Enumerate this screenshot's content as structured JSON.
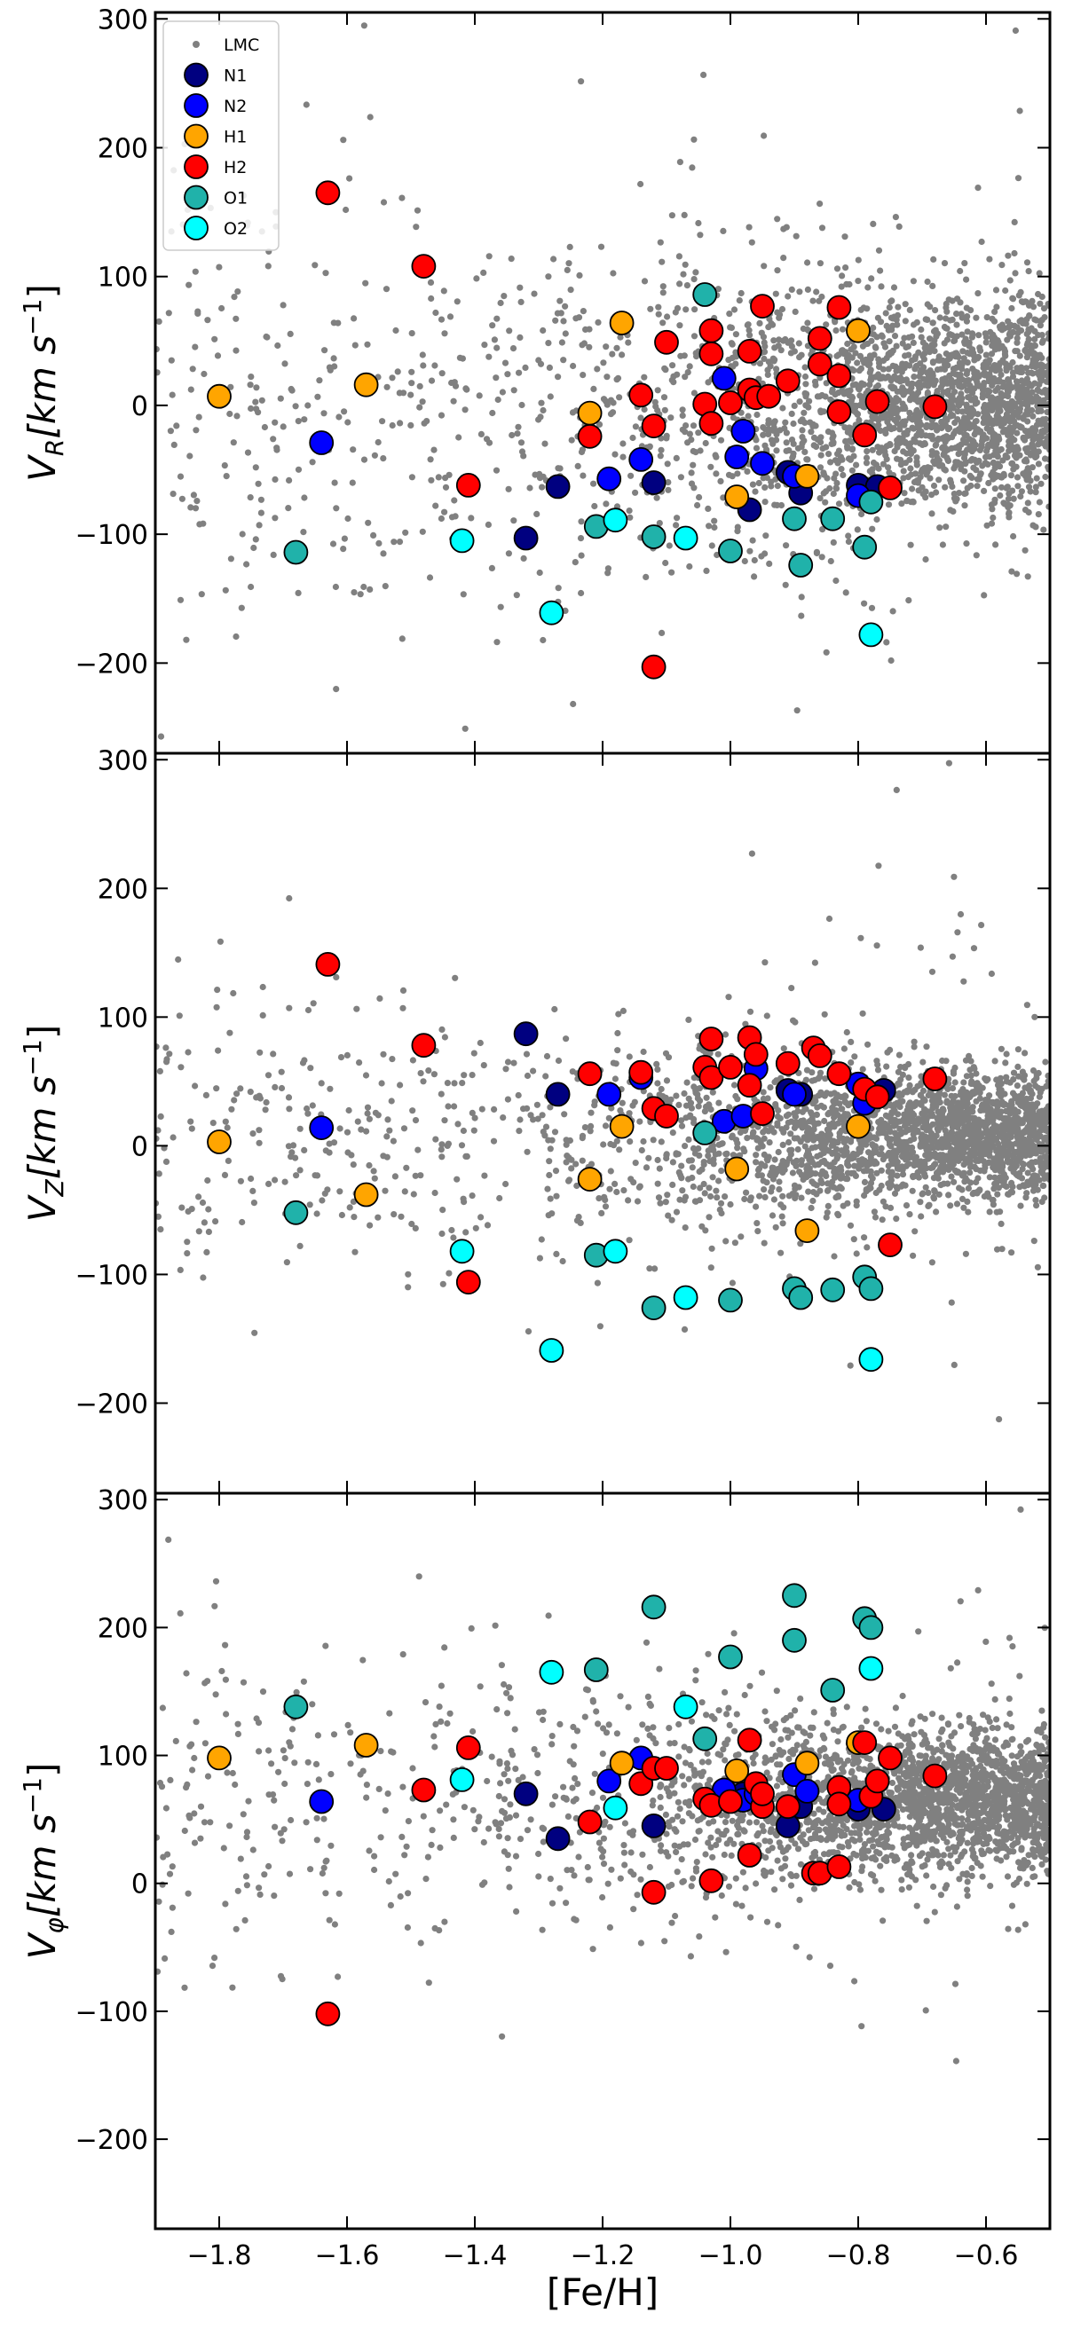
{
  "chart_data": [
    {
      "type": "scatter",
      "ylabel": "V_R[km  s^-1]",
      "ylabel_parts": {
        "main": "V",
        "sub": "R",
        "unit": "[km  s",
        "sup": "−1",
        "close": "]"
      },
      "xlim": [
        -1.9,
        -0.5
      ],
      "ylim": [
        -270,
        305
      ],
      "yticks": [
        -200,
        -100,
        0,
        100,
        200,
        300
      ],
      "ytick_labels": [
        "−200",
        "−100",
        "0",
        "100",
        "200",
        "300"
      ],
      "legend": {
        "placement": "upper-left",
        "entries": [
          "LMC",
          "N1",
          "N2",
          "H1",
          "H2",
          "O1",
          "O2"
        ]
      },
      "series": [
        {
          "name": "N1",
          "points": [
            [
              -1.32,
              -103
            ],
            [
              -1.27,
              -63
            ],
            [
              -1.12,
              -60
            ],
            [
              -0.97,
              -81
            ],
            [
              -0.91,
              -52
            ],
            [
              -0.89,
              -68
            ],
            [
              -0.8,
              -62
            ],
            [
              -0.77,
              -63
            ]
          ]
        },
        {
          "name": "N2",
          "points": [
            [
              -1.64,
              -29
            ],
            [
              -1.19,
              -57
            ],
            [
              -1.14,
              -42
            ],
            [
              -1.01,
              21
            ],
            [
              -0.99,
              -40
            ],
            [
              -0.98,
              -20
            ],
            [
              -0.95,
              -45
            ],
            [
              -0.9,
              -55
            ],
            [
              -0.8,
              -70
            ]
          ]
        },
        {
          "name": "H1",
          "points": [
            [
              -1.8,
              7
            ],
            [
              -1.57,
              16
            ],
            [
              -1.22,
              -6
            ],
            [
              -1.17,
              64
            ],
            [
              -0.99,
              -71
            ],
            [
              -0.88,
              -55
            ],
            [
              -0.8,
              58
            ]
          ]
        },
        {
          "name": "H2",
          "points": [
            [
              -1.63,
              165
            ],
            [
              -1.48,
              108
            ],
            [
              -1.41,
              -62
            ],
            [
              -1.22,
              -24
            ],
            [
              -1.14,
              8
            ],
            [
              -1.12,
              -16
            ],
            [
              -1.1,
              49
            ],
            [
              -1.04,
              1
            ],
            [
              -1.03,
              -14
            ],
            [
              -1.03,
              58
            ],
            [
              -1.03,
              40
            ],
            [
              -1.0,
              2
            ],
            [
              -0.97,
              12
            ],
            [
              -0.97,
              42
            ],
            [
              -0.96,
              6
            ],
            [
              -0.95,
              77
            ],
            [
              -0.94,
              7
            ],
            [
              -0.91,
              19
            ],
            [
              -0.86,
              52
            ],
            [
              -0.86,
              32
            ],
            [
              -0.83,
              76
            ],
            [
              -0.83,
              -5
            ],
            [
              -0.83,
              23
            ],
            [
              -0.79,
              -23
            ],
            [
              -0.77,
              3
            ],
            [
              -0.75,
              -64
            ],
            [
              -0.68,
              -1
            ],
            [
              -1.12,
              -203
            ]
          ]
        },
        {
          "name": "O1",
          "points": [
            [
              -1.68,
              -114
            ],
            [
              -1.21,
              -94
            ],
            [
              -1.12,
              -102
            ],
            [
              -1.04,
              86
            ],
            [
              -1.0,
              -113
            ],
            [
              -0.9,
              -88
            ],
            [
              -0.89,
              -124
            ],
            [
              -0.84,
              -88
            ],
            [
              -0.79,
              -110
            ],
            [
              -0.78,
              -75
            ]
          ]
        },
        {
          "name": "O2",
          "points": [
            [
              -1.42,
              -105
            ],
            [
              -1.28,
              -161
            ],
            [
              -1.18,
              -89
            ],
            [
              -1.07,
              -103
            ],
            [
              -0.78,
              -178
            ]
          ]
        }
      ]
    },
    {
      "type": "scatter",
      "ylabel": "V_Z[km  s^-1]",
      "ylabel_parts": {
        "main": "V",
        "sub": "Z",
        "unit": "[km  s",
        "sup": "−1",
        "close": "]"
      },
      "xlim": [
        -1.9,
        -0.5
      ],
      "ylim": [
        -270,
        305
      ],
      "yticks": [
        -200,
        -100,
        0,
        100,
        200,
        300
      ],
      "ytick_labels": [
        "−200",
        "−100",
        "0",
        "100",
        "200",
        "300"
      ],
      "series": [
        {
          "name": "N1",
          "points": [
            [
              -1.32,
              87
            ],
            [
              -1.27,
              40
            ],
            [
              -0.91,
              43
            ],
            [
              -0.89,
              40
            ],
            [
              -0.76,
              43
            ]
          ]
        },
        {
          "name": "N2",
          "points": [
            [
              -1.64,
              14
            ],
            [
              -1.19,
              40
            ],
            [
              -1.14,
              53
            ],
            [
              -1.01,
              19
            ],
            [
              -0.98,
              23
            ],
            [
              -0.96,
              60
            ],
            [
              -0.9,
              40
            ],
            [
              -0.8,
              48
            ],
            [
              -0.79,
              33
            ]
          ]
        },
        {
          "name": "H1",
          "points": [
            [
              -1.8,
              3
            ],
            [
              -1.57,
              -38
            ],
            [
              -1.22,
              -26
            ],
            [
              -1.17,
              15
            ],
            [
              -0.99,
              -18
            ],
            [
              -0.88,
              -66
            ],
            [
              -0.8,
              15
            ]
          ]
        },
        {
          "name": "H2",
          "points": [
            [
              -1.63,
              141
            ],
            [
              -1.48,
              78
            ],
            [
              -1.41,
              -106
            ],
            [
              -1.22,
              56
            ],
            [
              -1.14,
              57
            ],
            [
              -1.12,
              29
            ],
            [
              -1.1,
              23
            ],
            [
              -1.04,
              61
            ],
            [
              -1.03,
              53
            ],
            [
              -1.03,
              83
            ],
            [
              -1.0,
              61
            ],
            [
              -0.97,
              84
            ],
            [
              -0.97,
              47
            ],
            [
              -0.96,
              71
            ],
            [
              -0.95,
              25
            ],
            [
              -0.91,
              64
            ],
            [
              -0.87,
              76
            ],
            [
              -0.86,
              70
            ],
            [
              -0.83,
              56
            ],
            [
              -0.79,
              44
            ],
            [
              -0.77,
              38
            ],
            [
              -0.75,
              -77
            ],
            [
              -0.68,
              52
            ]
          ]
        },
        {
          "name": "O1",
          "points": [
            [
              -1.68,
              -52
            ],
            [
              -1.21,
              -85
            ],
            [
              -1.12,
              -126
            ],
            [
              -1.04,
              10
            ],
            [
              -1.0,
              -120
            ],
            [
              -0.9,
              -111
            ],
            [
              -0.89,
              -118
            ],
            [
              -0.84,
              -112
            ],
            [
              -0.79,
              -102
            ],
            [
              -0.78,
              -111
            ]
          ]
        },
        {
          "name": "O2",
          "points": [
            [
              -1.42,
              -82
            ],
            [
              -1.28,
              -159
            ],
            [
              -1.18,
              -82
            ],
            [
              -1.07,
              -118
            ],
            [
              -0.78,
              -166
            ]
          ]
        }
      ]
    },
    {
      "type": "scatter",
      "ylabel": "V_φ[km  s^-1]",
      "ylabel_parts": {
        "main": "V",
        "sub": "φ",
        "unit": "[km  s",
        "sup": "−1",
        "close": "]"
      },
      "xlabel": "[Fe/H]",
      "xlim": [
        -1.9,
        -0.5
      ],
      "ylim": [
        -270,
        305
      ],
      "xticks": [
        -1.8,
        -1.6,
        -1.4,
        -1.2,
        -1.0,
        -0.8,
        -0.6
      ],
      "xtick_labels": [
        "−1.8",
        "−1.6",
        "−1.4",
        "−1.2",
        "−1.0",
        "−0.8",
        "−0.6"
      ],
      "yticks": [
        -200,
        -100,
        0,
        100,
        200,
        300
      ],
      "ytick_labels": [
        "−200",
        "−100",
        "0",
        "100",
        "200",
        "300"
      ],
      "series": [
        {
          "name": "N1",
          "points": [
            [
              -1.32,
              70
            ],
            [
              -1.27,
              35
            ],
            [
              -1.12,
              45
            ],
            [
              -0.98,
              70
            ],
            [
              -0.91,
              45
            ],
            [
              -0.89,
              60
            ],
            [
              -0.8,
              58
            ],
            [
              -0.76,
              58
            ]
          ]
        },
        {
          "name": "N2",
          "points": [
            [
              -1.64,
              64
            ],
            [
              -1.19,
              80
            ],
            [
              -1.14,
              98
            ],
            [
              -1.01,
              73
            ],
            [
              -0.98,
              65
            ],
            [
              -0.96,
              70
            ],
            [
              -0.9,
              85
            ],
            [
              -0.88,
              72
            ],
            [
              -0.8,
              65
            ]
          ]
        },
        {
          "name": "H1",
          "points": [
            [
              -1.8,
              98
            ],
            [
              -1.57,
              108
            ],
            [
              -1.17,
              94
            ],
            [
              -0.99,
              88
            ],
            [
              -0.88,
              94
            ],
            [
              -0.8,
              110
            ]
          ]
        },
        {
          "name": "H2",
          "points": [
            [
              -1.63,
              -102
            ],
            [
              -1.48,
              73
            ],
            [
              -1.41,
              106
            ],
            [
              -1.22,
              48
            ],
            [
              -1.14,
              78
            ],
            [
              -1.12,
              90
            ],
            [
              -1.12,
              -7
            ],
            [
              -1.1,
              90
            ],
            [
              -1.04,
              66
            ],
            [
              -1.03,
              61
            ],
            [
              -1.03,
              2
            ],
            [
              -1.0,
              64
            ],
            [
              -0.97,
              112
            ],
            [
              -0.97,
              22
            ],
            [
              -0.96,
              78
            ],
            [
              -0.95,
              60
            ],
            [
              -0.95,
              70
            ],
            [
              -0.91,
              60
            ],
            [
              -0.87,
              8
            ],
            [
              -0.86,
              8
            ],
            [
              -0.83,
              13
            ],
            [
              -0.83,
              75
            ],
            [
              -0.83,
              62
            ],
            [
              -0.79,
              110
            ],
            [
              -0.78,
              68
            ],
            [
              -0.77,
              80
            ],
            [
              -0.75,
              98
            ],
            [
              -0.68,
              84
            ]
          ]
        },
        {
          "name": "O1",
          "points": [
            [
              -1.68,
              138
            ],
            [
              -1.21,
              167
            ],
            [
              -1.12,
              216
            ],
            [
              -1.04,
              113
            ],
            [
              -1.0,
              177
            ],
            [
              -0.9,
              225
            ],
            [
              -0.9,
              190
            ],
            [
              -0.84,
              151
            ],
            [
              -0.79,
              207
            ],
            [
              -0.78,
              200
            ]
          ]
        },
        {
          "name": "O2",
          "points": [
            [
              -1.42,
              81
            ],
            [
              -1.28,
              165
            ],
            [
              -1.18,
              59
            ],
            [
              -1.07,
              138
            ],
            [
              -0.78,
              168
            ]
          ]
        }
      ]
    }
  ],
  "colors": {
    "LMC": "#808080",
    "N1": "#000080",
    "N2": "#0000ff",
    "H1": "#ffa500",
    "H2": "#ff0000",
    "O1": "#20b2aa",
    "O2": "#00ffff",
    "marker_edge": "#000000"
  }
}
